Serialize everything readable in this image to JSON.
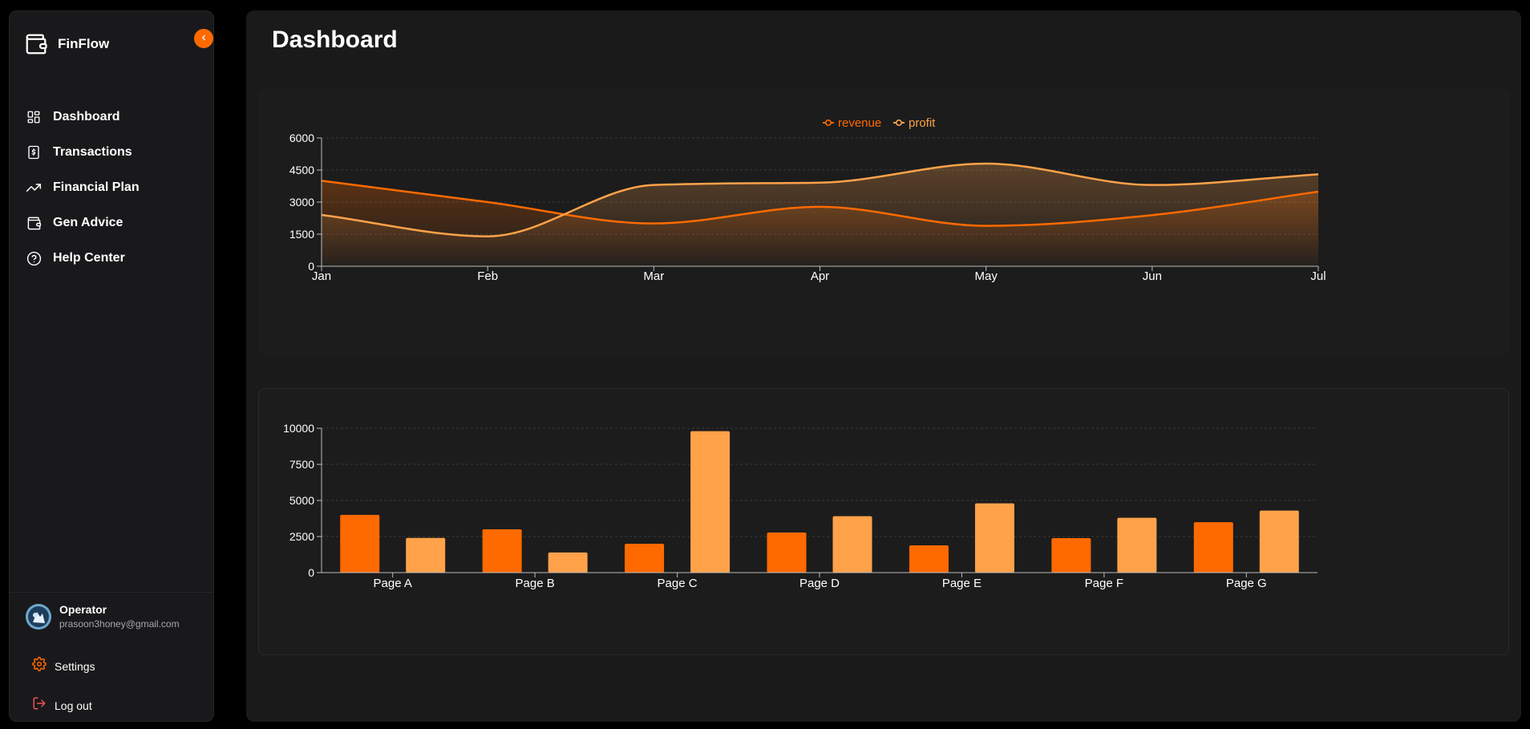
{
  "app": {
    "name": "FinFlow"
  },
  "sidebar": {
    "items": [
      {
        "label": "Dashboard",
        "icon": "dashboard-grid-icon"
      },
      {
        "label": "Transactions",
        "icon": "dollar-receipt-icon"
      },
      {
        "label": "Financial Plan",
        "icon": "trending-up-icon"
      },
      {
        "label": "Gen Advice",
        "icon": "wallet-icon"
      },
      {
        "label": "Help Center",
        "icon": "help-circle-icon"
      }
    ],
    "user": {
      "name": "Operator",
      "email": "prasoon3honey@gmail.com"
    },
    "settings_label": "Settings",
    "logout_label": "Log out"
  },
  "main": {
    "title": "Dashboard"
  },
  "colors": {
    "accent": "#ff6a00",
    "accent_light": "#ffa24a",
    "danger": "#f05252"
  },
  "chart_data": [
    {
      "type": "area",
      "categories": [
        "Jan",
        "Feb",
        "Mar",
        "Apr",
        "May",
        "Jun",
        "Jul"
      ],
      "series": [
        {
          "name": "revenue",
          "values": [
            4000,
            3000,
            2000,
            2780,
            1890,
            2390,
            3490
          ],
          "color": "#ff6a00"
        },
        {
          "name": "profit",
          "values": [
            2400,
            1398,
            3800,
            3908,
            4800,
            3800,
            4300
          ],
          "color": "#ffa24a"
        }
      ],
      "ylim": [
        0,
        6000
      ],
      "yticks": [
        0,
        1500,
        3000,
        4500,
        6000
      ],
      "curve": "smooth",
      "grid": true,
      "legend": "top-center"
    },
    {
      "type": "bar",
      "categories": [
        "Page A",
        "Page B",
        "Page C",
        "Page D",
        "Page E",
        "Page F",
        "Page G"
      ],
      "series": [
        {
          "values": [
            4000,
            3000,
            2000,
            2780,
            1890,
            2390,
            3490
          ],
          "color": "#ff6a00"
        },
        {
          "values": [
            2400,
            1398,
            9800,
            3908,
            4800,
            3800,
            4300
          ],
          "color": "#ffa24a"
        }
      ],
      "ylim": [
        0,
        10000
      ],
      "yticks": [
        0,
        2500,
        5000,
        7500,
        10000
      ],
      "grid": true
    }
  ]
}
